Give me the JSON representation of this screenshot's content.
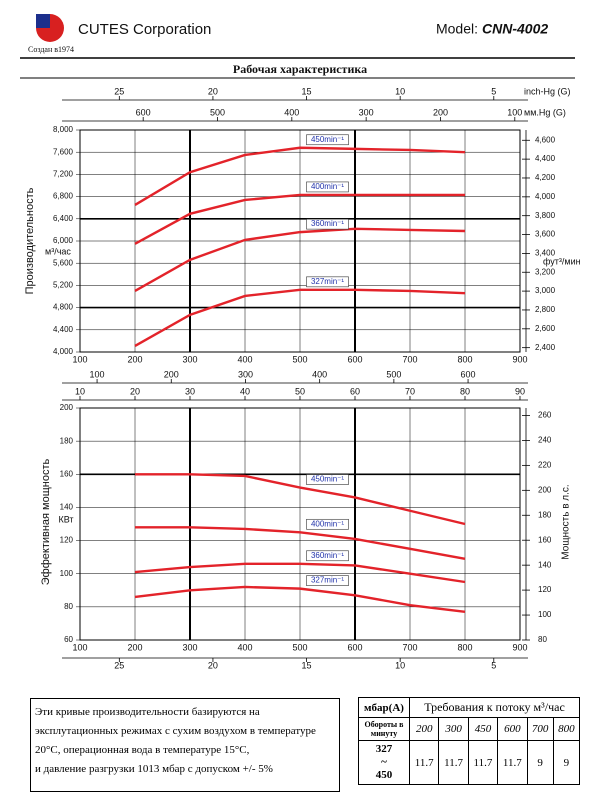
{
  "header": {
    "company": "CUTES Corporation",
    "since": "Создан в1974",
    "model_label": "Model:",
    "model": "CNN-4002",
    "title": "Рабочая характеристика"
  },
  "chart_data": [
    {
      "type": "line",
      "y_label": "Производительность",
      "y_unit": "м³/час",
      "y2_unit": "фут³/мин",
      "x": [
        200,
        300,
        400,
        500,
        600,
        700,
        800
      ],
      "xlim": [
        100,
        900
      ],
      "xticks": [
        100,
        200,
        300,
        400,
        500,
        600,
        700,
        800,
        900
      ],
      "ylim": [
        4000,
        8000
      ],
      "yticks": [
        {
          "value": 4000,
          "label": "4,000"
        },
        {
          "value": 4400,
          "label": "4,400"
        },
        {
          "value": 4800,
          "label": "4,800"
        },
        {
          "value": 5200,
          "label": "5,200"
        },
        {
          "value": 5600,
          "label": "5,600"
        },
        {
          "value": 6000,
          "label": "6,000"
        },
        {
          "value": 6400,
          "label": "6,400"
        },
        {
          "value": 6800,
          "label": "6,800"
        },
        {
          "value": 7200,
          "label": "7,200"
        },
        {
          "value": 7600,
          "label": "7,600"
        },
        {
          "value": 8000,
          "label": "8,000"
        }
      ],
      "y2lim": [
        2354,
        4709
      ],
      "y2ticks": [
        {
          "value": 2400,
          "label": "2,400"
        },
        {
          "value": 2600,
          "label": "2,600"
        },
        {
          "value": 2800,
          "label": "2,800"
        },
        {
          "value": 3000,
          "label": "3,000"
        },
        {
          "value": 3200,
          "label": "3,200"
        },
        {
          "value": 3400,
          "label": "3,400"
        },
        {
          "value": 3600,
          "label": "3,600"
        },
        {
          "value": 3800,
          "label": "3,800"
        },
        {
          "value": 4000,
          "label": "4,000"
        },
        {
          "value": 4200,
          "label": "4,200"
        },
        {
          "value": 4400,
          "label": "4,400"
        },
        {
          "value": 4600,
          "label": "4,600"
        }
      ],
      "top_axes": [
        {
          "label": "inch-Hg (G)",
          "lim": [
            27.1,
            3.6
          ],
          "ticks": [
            25,
            20,
            15,
            10,
            5
          ]
        },
        {
          "label": "мм.Hg (G)",
          "lim": [
            685,
            93
          ],
          "ticks": [
            600,
            500,
            400,
            300,
            200,
            100
          ]
        }
      ],
      "bottom_axes": [],
      "grid": true,
      "bold_x": [
        300,
        600
      ],
      "bold_y": [
        4800,
        6400
      ],
      "color": "#e3232a",
      "series": [
        {
          "name": "450min⁻¹",
          "values": [
            6650,
            7240,
            7550,
            7680,
            7660,
            7640,
            7600
          ]
        },
        {
          "name": "400min⁻¹",
          "values": [
            5950,
            6490,
            6740,
            6830,
            6830,
            6830,
            6830
          ]
        },
        {
          "name": "360min⁻¹",
          "values": [
            5100,
            5660,
            6020,
            6160,
            6220,
            6200,
            6180
          ]
        },
        {
          "name": "327min⁻¹",
          "values": [
            4110,
            4670,
            5010,
            5120,
            5120,
            5100,
            5060
          ]
        }
      ]
    },
    {
      "type": "line",
      "y_label": "Эффективная мощность",
      "y_unit": "КВт",
      "y2_label": "Мощность в л.с.",
      "x": [
        200,
        300,
        400,
        500,
        600,
        700,
        800
      ],
      "xlim": [
        100,
        900
      ],
      "xticks": [
        100,
        200,
        300,
        400,
        500,
        600,
        700,
        800,
        900
      ],
      "ylim": [
        60,
        200
      ],
      "yticks": [
        60,
        80,
        100,
        120,
        140,
        160,
        180,
        200
      ],
      "y2lim": [
        80,
        266
      ],
      "y2ticks": [
        80,
        100,
        120,
        140,
        160,
        180,
        200,
        220,
        240,
        260
      ],
      "top_axes": [
        {
          "lim": [
            77,
            670
          ],
          "ticks": [
            100,
            200,
            300,
            400,
            500,
            600
          ]
        },
        {
          "lim": [
            10,
            90
          ],
          "ticks": [
            10,
            20,
            30,
            40,
            50,
            60,
            70,
            80,
            90
          ]
        }
      ],
      "bottom_axes": [
        {
          "lim": [
            27.1,
            3.6
          ],
          "ticks": [
            25,
            20,
            15,
            10,
            5
          ]
        }
      ],
      "grid": true,
      "bold_x": [
        300,
        600
      ],
      "bold_y": [
        160
      ],
      "color": "#e3232a",
      "series": [
        {
          "name": "450min⁻¹",
          "values": [
            160,
            160,
            159,
            152,
            146,
            138,
            130
          ]
        },
        {
          "name": "400min⁻¹",
          "values": [
            128,
            128,
            127,
            125,
            121,
            115,
            109
          ]
        },
        {
          "name": "360min⁻¹",
          "values": [
            101,
            104,
            106,
            106,
            105,
            100,
            95
          ]
        },
        {
          "name": "327min⁻¹",
          "values": [
            86,
            90,
            92,
            91,
            87,
            81,
            77
          ]
        }
      ]
    }
  ],
  "footnote": {
    "lines": [
      "Эти кривые производительности базируются на",
      "эксплутационных режимах с сухим воздухом в температуре",
      "20°C, операционная вода в температуре 15°C,",
      "и давление разгрузки 1013 мбар с допуском +/- 5%"
    ]
  },
  "table": {
    "header": [
      "мбар(A)",
      "Требования к потоку м³/час"
    ],
    "subheader": "Обороты в минуту",
    "flows": [
      200,
      300,
      450,
      600,
      700,
      800
    ],
    "rows": [
      {
        "rpm": [
          "327",
          "~",
          "450"
        ],
        "values": [
          11.7,
          11.7,
          11.7,
          11.7,
          9,
          9
        ]
      }
    ]
  }
}
